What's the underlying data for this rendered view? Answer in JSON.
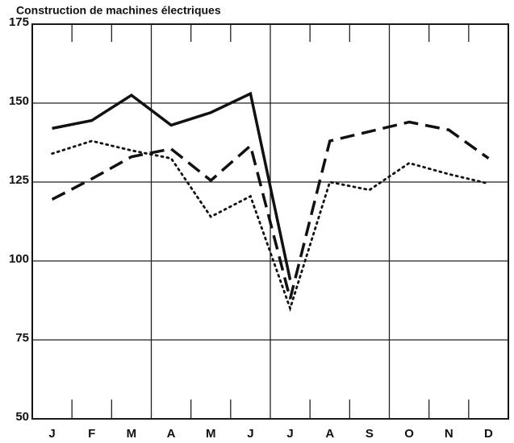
{
  "chart_data": {
    "type": "line",
    "title": "Construction de machines électriques",
    "categories": [
      "J",
      "F",
      "M",
      "A",
      "M",
      "J",
      "J",
      "A",
      "S",
      "O",
      "N",
      "D"
    ],
    "series": [
      {
        "color": "#111111",
        "dash": "solid",
        "values": [
          142,
          144.5,
          152.5,
          143,
          147,
          153,
          94,
          null,
          null,
          null,
          null,
          null
        ]
      },
      {
        "color": "#111111",
        "dash": "dashed",
        "values": [
          119.5,
          126,
          133,
          135.5,
          125.5,
          136.5,
          88,
          138,
          141,
          144,
          141.5,
          132.5
        ]
      },
      {
        "color": "#111111",
        "dash": "dotted",
        "values": [
          134,
          138,
          135,
          132.5,
          114,
          120.5,
          85,
          125,
          122.5,
          131,
          127.5,
          124.5
        ]
      }
    ],
    "ylim": [
      50,
      175
    ],
    "yticks": [
      50,
      75,
      100,
      125,
      150,
      175
    ],
    "grid": true
  }
}
